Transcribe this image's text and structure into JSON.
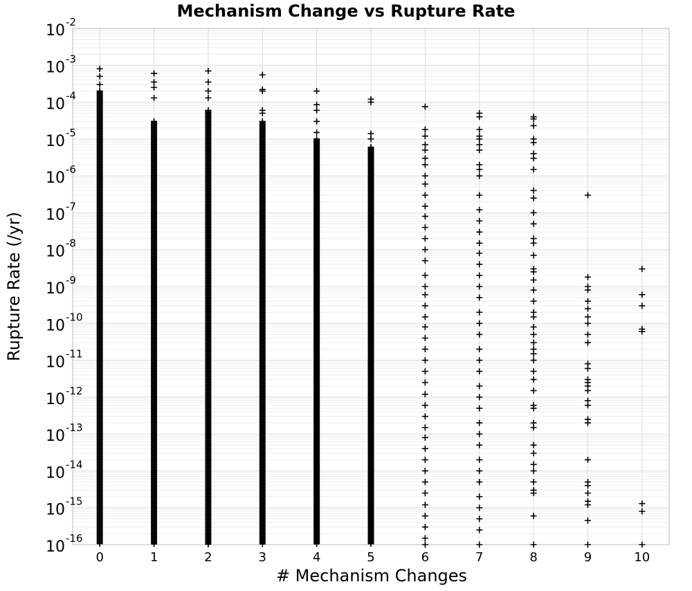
{
  "chart_data": {
    "type": "scatter",
    "title": "Mechanism Change vs Rupture Rate",
    "xlabel": "# Mechanism Changes",
    "ylabel": "Rupture Rate (/yr)",
    "x_ticks": [
      "0",
      "1",
      "2",
      "3",
      "4",
      "5",
      "6",
      "7",
      "8",
      "9",
      "10"
    ],
    "xlim": [
      -0.5,
      10.5
    ],
    "y_scale": "log",
    "ylim": [
      1e-16,
      0.01
    ],
    "y_ticks": [
      {
        "base": "10",
        "exp": "-16"
      },
      {
        "base": "10",
        "exp": "-15"
      },
      {
        "base": "10",
        "exp": "-14"
      },
      {
        "base": "10",
        "exp": "-13"
      },
      {
        "base": "10",
        "exp": "-12"
      },
      {
        "base": "10",
        "exp": "-11"
      },
      {
        "base": "10",
        "exp": "-10"
      },
      {
        "base": "10",
        "exp": "-9"
      },
      {
        "base": "10",
        "exp": "-8"
      },
      {
        "base": "10",
        "exp": "-7"
      },
      {
        "base": "10",
        "exp": "-6"
      },
      {
        "base": "10",
        "exp": "-5"
      },
      {
        "base": "10",
        "exp": "-4"
      },
      {
        "base": "10",
        "exp": "-3"
      },
      {
        "base": "10",
        "exp": "-2"
      }
    ],
    "grid": true,
    "marker": "+",
    "marker_color": "#000000",
    "series": [
      {
        "x": 0,
        "upper_outliers": [
          0.0008,
          0.0005,
          0.0003
        ],
        "dense_range": [
          1e-16,
          0.0002
        ],
        "sparse": []
      },
      {
        "x": 1,
        "upper_outliers": [
          0.0006,
          0.00035,
          0.00025,
          0.00013
        ],
        "dense_range": [
          1e-16,
          3e-05
        ],
        "sparse": []
      },
      {
        "x": 2,
        "upper_outliers": [
          0.0007,
          0.00035,
          0.0002,
          0.00013
        ],
        "dense_range": [
          1e-16,
          6e-05
        ],
        "sparse": []
      },
      {
        "x": 3,
        "upper_outliers": [
          0.00055,
          0.00022,
          0.0002,
          6e-05,
          5e-05
        ],
        "dense_range": [
          1e-16,
          3e-05
        ],
        "sparse": []
      },
      {
        "x": 4,
        "upper_outliers": [
          0.0002,
          8.5e-05,
          6e-05,
          3e-05,
          1.5e-05
        ],
        "dense_range": [
          1e-16,
          1e-05
        ],
        "sparse": []
      },
      {
        "x": 5,
        "upper_outliers": [
          0.00012,
          0.0001,
          1.4e-05,
          1e-05
        ],
        "dense_range": [
          1e-16,
          6e-06
        ],
        "sparse": []
      },
      {
        "x": 6,
        "upper_outliers": [
          7.5e-05,
          1.8e-05,
          1.2e-05
        ],
        "dense_range": [],
        "sparse": [
          7e-06,
          5e-06,
          3e-06,
          2e-06,
          1e-06,
          6e-07,
          3e-07,
          1.5e-07,
          8e-08,
          4e-08,
          2e-08,
          1e-08,
          5e-09,
          2e-09,
          1e-09,
          6e-10,
          3e-10,
          1.5e-10,
          8e-11,
          4e-11,
          2e-11,
          1e-11,
          5e-12,
          2.5e-12,
          1.2e-12,
          6e-13,
          3e-13,
          1.5e-13,
          8e-14,
          4e-14,
          2e-14,
          1e-14,
          5e-15,
          2.5e-15,
          1.2e-15,
          6e-16,
          3e-16,
          1.5e-16,
          1e-16
        ]
      },
      {
        "x": 7,
        "upper_outliers": [
          5e-05,
          4e-05,
          1.8e-05,
          1.2e-05,
          1e-05
        ],
        "dense_range": [],
        "sparse": [
          7e-06,
          5e-06,
          2e-06,
          1.5e-06,
          1e-06,
          3e-07,
          1.2e-07,
          6e-08,
          3e-08,
          1.5e-08,
          8e-09,
          4e-09,
          2e-09,
          1e-09,
          5e-10,
          2e-10,
          1e-10,
          5e-11,
          2e-11,
          1e-11,
          5e-12,
          2e-12,
          1e-12,
          5e-13,
          2e-13,
          1e-13,
          5e-14,
          2e-14,
          1e-14,
          5e-15,
          2e-15,
          1e-15,
          5e-16,
          2.5e-16,
          1e-16
        ]
      },
      {
        "x": 8,
        "upper_outliers": [
          4e-05,
          3.5e-05,
          2.3e-05,
          1e-05,
          8e-06
        ],
        "dense_range": [],
        "sparse": [
          4e-06,
          3e-06,
          1.5e-06,
          4e-07,
          2.5e-07,
          1e-07,
          5e-08,
          2e-08,
          1.5e-08,
          7e-09,
          3e-09,
          2.5e-09,
          1.5e-09,
          8e-10,
          4e-10,
          2e-10,
          1.5e-10,
          8e-11,
          5e-11,
          3e-11,
          2e-11,
          1.5e-11,
          1e-11,
          5e-12,
          3e-12,
          1.5e-12,
          6e-13,
          5e-13,
          2e-13,
          1.5e-13,
          5e-14,
          3e-14,
          1.5e-14,
          1e-14,
          5e-15,
          3e-15,
          2.5e-15,
          6e-16,
          1e-16
        ]
      },
      {
        "x": 9,
        "upper_outliers": [],
        "dense_range": [],
        "sparse": [
          3e-07,
          1.8e-09,
          1e-09,
          8e-10,
          4e-10,
          2.5e-10,
          1.5e-10,
          1e-10,
          5e-11,
          3e-11,
          8e-12,
          6e-12,
          3e-12,
          2.5e-12,
          2e-12,
          1.5e-12,
          8e-13,
          6e-13,
          2.5e-13,
          2e-13,
          2e-14,
          5e-15,
          4e-15,
          2.5e-15,
          1.5e-15,
          1.2e-15,
          4.5e-16,
          1e-16
        ]
      },
      {
        "x": 10,
        "upper_outliers": [],
        "dense_range": [],
        "sparse": [
          3e-09,
          6e-10,
          3e-10,
          7e-11,
          6e-11,
          1.3e-15,
          8e-16,
          1e-16
        ]
      }
    ]
  }
}
